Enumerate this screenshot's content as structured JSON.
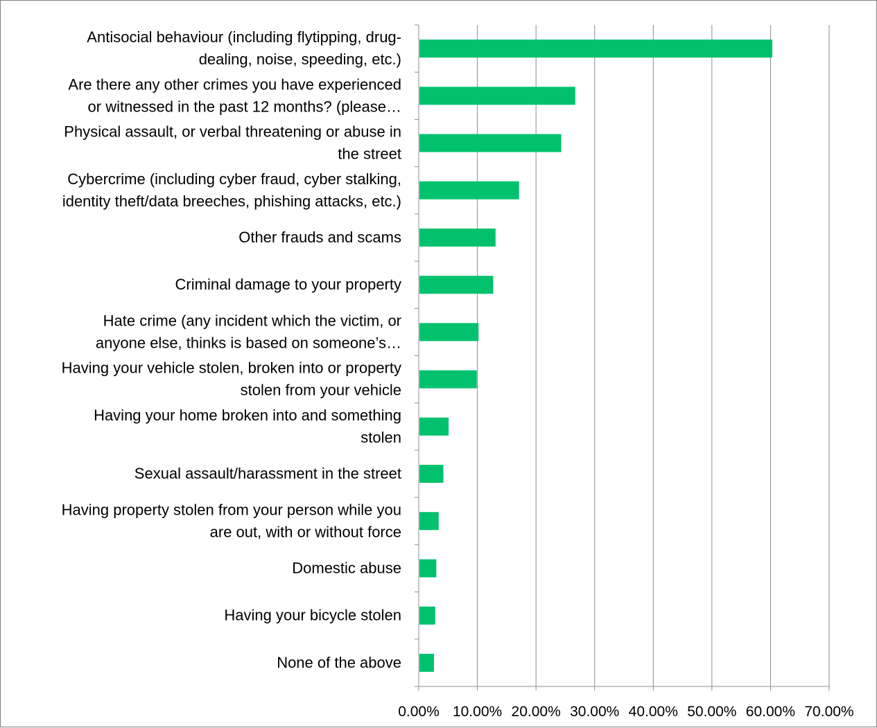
{
  "chart_data": {
    "type": "bar",
    "orientation": "horizontal",
    "title": "",
    "xlabel": "",
    "ylabel": "",
    "xlim": [
      0,
      70
    ],
    "grid": true,
    "legend": "none",
    "bar_color": "#00c16e",
    "tick_labels": [
      "0.00%",
      "10.00%",
      "20.00%",
      "30.00%",
      "40.00%",
      "50.00%",
      "60.00%",
      "70.00%"
    ],
    "categories": [
      [
        "Antisocial behaviour (including flytipping, drug-",
        "dealing, noise, speeding, etc.)"
      ],
      [
        "Are there any other crimes you have experienced",
        "or witnessed in the past 12 months? (please…"
      ],
      [
        "Physical assault, or verbal threatening or abuse in",
        "the street"
      ],
      [
        "Cybercrime (including cyber fraud, cyber stalking,",
        "identity theft/data breeches, phishing attacks, etc.)"
      ],
      [
        "Other frauds and scams"
      ],
      [
        "Criminal damage to your property"
      ],
      [
        "Hate crime (any incident which the victim, or",
        "anyone else, thinks is based on someone’s…"
      ],
      [
        "Having your vehicle stolen, broken into or property",
        "stolen from your vehicle"
      ],
      [
        "Having your home broken into and something",
        "stolen"
      ],
      [
        "Sexual assault/harassment in the street"
      ],
      [
        "Having property stolen from your person while you",
        "are out, with or without force"
      ],
      [
        "Domestic abuse"
      ],
      [
        "Having your bicycle stolen"
      ],
      [
        "None of the above"
      ]
    ],
    "values": [
      60.3,
      26.7,
      24.3,
      17.1,
      13.1,
      12.7,
      10.2,
      9.9,
      5.1,
      4.2,
      3.4,
      3.0,
      2.8,
      2.6
    ]
  }
}
